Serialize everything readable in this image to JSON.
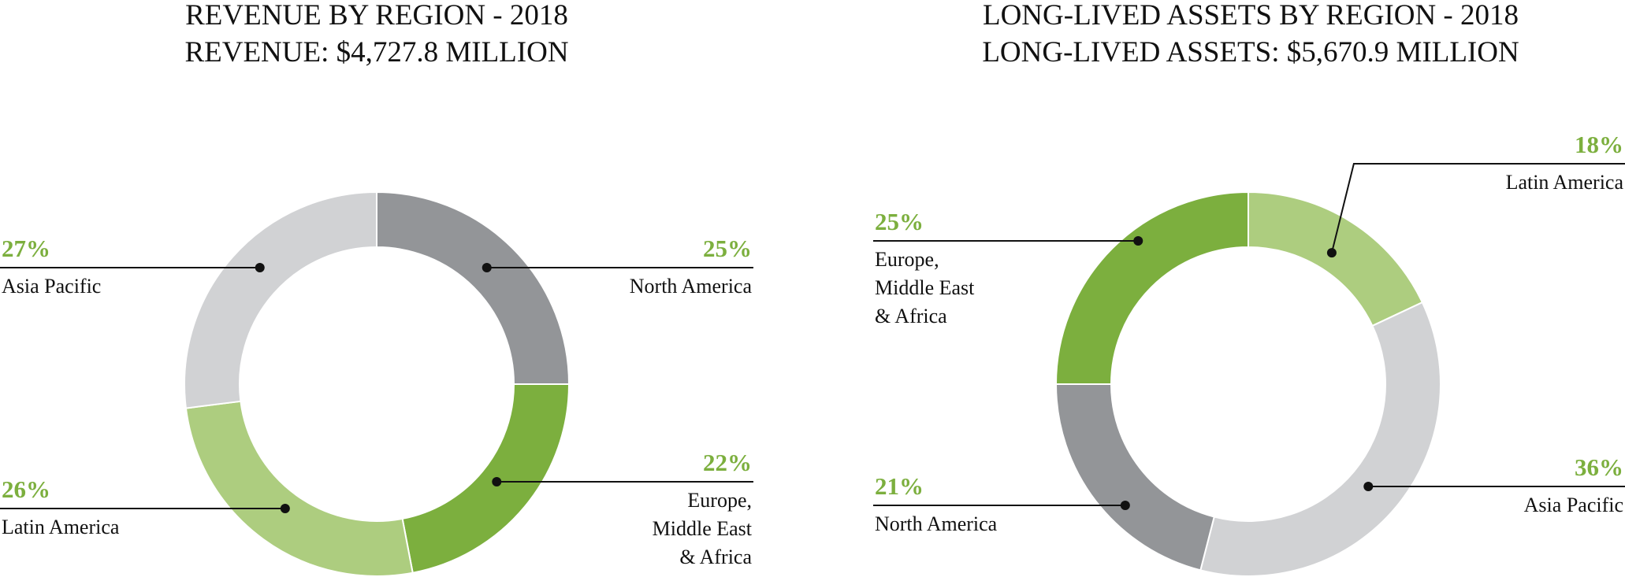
{
  "chart_data": [
    {
      "type": "pie",
      "title": "REVENUE BY REGION - 2018",
      "subtitle": "REVENUE: $4,727.8 MILLION",
      "unit": "%",
      "slices": [
        {
          "label": "North America",
          "label_lines": [
            "North America"
          ],
          "value": 25,
          "display": "25%",
          "color": "#939598"
        },
        {
          "label": "Europe, Middle East & Africa",
          "label_lines": [
            "Europe,",
            "Middle East",
            "& Africa"
          ],
          "value": 22,
          "display": "22%",
          "color": "#7caf3e"
        },
        {
          "label": "Latin America",
          "label_lines": [
            "Latin America"
          ],
          "value": 26,
          "display": "26%",
          "color": "#adcd7f"
        },
        {
          "label": "Asia Pacific",
          "label_lines": [
            "Asia Pacific"
          ],
          "value": 27,
          "display": "27%",
          "color": "#d1d2d4"
        }
      ]
    },
    {
      "type": "pie",
      "title": "LONG-LIVED ASSETS BY REGION - 2018",
      "subtitle": "LONG-LIVED ASSETS: $5,670.9 MILLION",
      "unit": "%",
      "slices": [
        {
          "label": "Latin America",
          "label_lines": [
            "Latin America"
          ],
          "value": 18,
          "display": "18%",
          "color": "#adcd7f"
        },
        {
          "label": "Asia Pacific",
          "label_lines": [
            "Asia Pacific"
          ],
          "value": 36,
          "display": "36%",
          "color": "#d1d2d4"
        },
        {
          "label": "North America",
          "label_lines": [
            "North America"
          ],
          "value": 21,
          "display": "21%",
          "color": "#939598"
        },
        {
          "label": "Europe, Middle East & Africa",
          "label_lines": [
            "Europe,",
            "Middle East",
            "& Africa"
          ],
          "value": 25,
          "display": "25%",
          "color": "#7caf3e"
        }
      ]
    }
  ],
  "colors": {
    "accent_text": "#7caf3e",
    "leader_line": "#111111"
  }
}
